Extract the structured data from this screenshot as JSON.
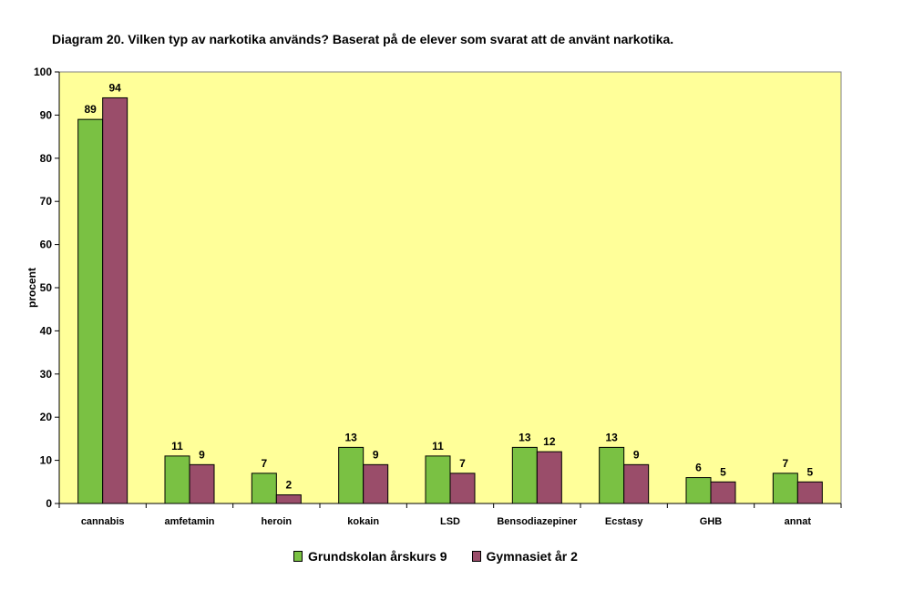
{
  "title": "Diagram 20. Vilken typ av narkotika används? Baserat på de elever som svarat att de använt narkotika.",
  "colors": {
    "plot_background": "#ffff99",
    "series_1": "#7ac143",
    "series_2": "#9a4d6a"
  },
  "chart_data": {
    "type": "bar",
    "categories": [
      "cannabis",
      "amfetamin",
      "heroin",
      "kokain",
      "LSD",
      "Bensodiazepiner",
      "Ecstasy",
      "GHB",
      "annat"
    ],
    "series": [
      {
        "name": "Grundskolan årskurs 9",
        "values": [
          89,
          11,
          7,
          13,
          11,
          13,
          13,
          6,
          7
        ]
      },
      {
        "name": "Gymnasiet år 2",
        "values": [
          94,
          9,
          2,
          9,
          7,
          12,
          9,
          5,
          5
        ]
      }
    ],
    "xlabel": "",
    "ylabel": "procent",
    "ylim": [
      0,
      100
    ],
    "yticks": [
      0,
      10,
      20,
      30,
      40,
      50,
      60,
      70,
      80,
      90,
      100
    ],
    "data_labels": true,
    "grid": false,
    "legend": "bottom"
  }
}
